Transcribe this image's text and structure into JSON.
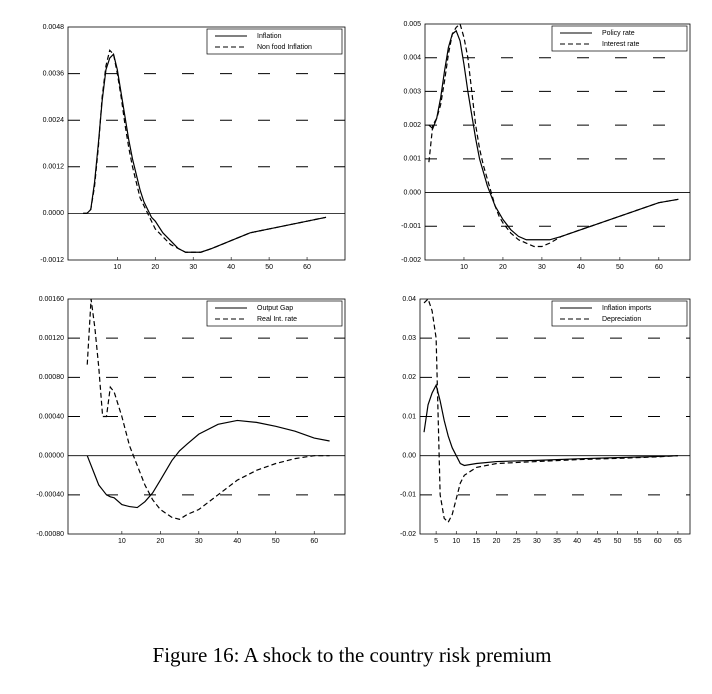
{
  "chart_data": [
    {
      "type": "line",
      "x": [
        1,
        2,
        3,
        4,
        5,
        6,
        7,
        8,
        9,
        10,
        11,
        12,
        13,
        14,
        15,
        16,
        17,
        18,
        19,
        20,
        22,
        24,
        26,
        28,
        30,
        32,
        35,
        40,
        45,
        50,
        55,
        60,
        65
      ],
      "series": [
        {
          "name": "Inflation",
          "color": "#000000",
          "style": "solid",
          "values": [
            0,
            0,
            0.0001,
            0.0008,
            0.0018,
            0.0029,
            0.0037,
            0.004,
            0.0041,
            0.0037,
            0.0031,
            0.0025,
            0.0019,
            0.0014,
            0.001,
            0.0006,
            0.0003,
            0.0001,
            -0.0001,
            -0.0002,
            -0.0005,
            -0.0007,
            -0.0009,
            -0.001,
            -0.001,
            -0.001,
            -0.0009,
            -0.0007,
            -0.0005,
            -0.0004,
            -0.0003,
            -0.0002,
            -0.0001
          ]
        },
        {
          "name": "Non food Inflation",
          "color": "#000000",
          "style": "dashed",
          "values": [
            0,
            0,
            0.0001,
            0.0007,
            0.0017,
            0.003,
            0.0038,
            0.0042,
            0.0041,
            0.0036,
            0.003,
            0.0023,
            0.0017,
            0.0012,
            0.0008,
            0.0004,
            0.0002,
            0,
            -0.0002,
            -0.0004,
            -0.0006,
            -0.0008,
            -0.0009,
            -0.001,
            -0.001,
            -0.001,
            -0.0009,
            -0.0007,
            -0.0005,
            -0.0004,
            -0.0003,
            -0.0002,
            -0.0001
          ]
        }
      ],
      "xlim": [
        -3,
        70
      ],
      "xticks": [
        10,
        20,
        30,
        40,
        50,
        60
      ],
      "ylim": [
        -0.0012,
        0.0048
      ],
      "yticks": [
        {
          "value": -0.0012,
          "label": "-0.0012"
        },
        {
          "value": 0,
          "label": "0.0000"
        },
        {
          "value": 0.0012,
          "label": "0.0012"
        },
        {
          "value": 0.0024,
          "label": "0.0024"
        },
        {
          "value": 0.0036,
          "label": "0.0036"
        },
        {
          "value": 0.0048,
          "label": "0.0048"
        }
      ],
      "grid": true,
      "legend": "top-right"
    },
    {
      "type": "line",
      "x": [
        1,
        2,
        3,
        4,
        5,
        6,
        7,
        8,
        9,
        10,
        11,
        12,
        13,
        14,
        15,
        16,
        17,
        18,
        19,
        20,
        22,
        24,
        26,
        28,
        30,
        32,
        35,
        40,
        45,
        50,
        55,
        60,
        65
      ],
      "series": [
        {
          "name": "Policy rate",
          "color": "#000000",
          "style": "solid",
          "values": [
            0.002,
            0.0019,
            0.0022,
            0.0028,
            0.0036,
            0.0043,
            0.0047,
            0.0048,
            0.0045,
            0.0038,
            0.003,
            0.0023,
            0.0016,
            0.001,
            0.0006,
            0.0002,
            -0.0001,
            -0.0004,
            -0.0006,
            -0.0008,
            -0.0011,
            -0.0013,
            -0.0014,
            -0.0014,
            -0.0014,
            -0.0014,
            -0.0013,
            -0.0011,
            -0.0009,
            -0.0007,
            -0.0005,
            -0.0003,
            -0.0002
          ]
        },
        {
          "name": "Interest rate",
          "color": "#000000",
          "style": "dashed",
          "values": [
            0.0009,
            0.002,
            0.0022,
            0.0026,
            0.0033,
            0.0041,
            0.0047,
            0.0049,
            0.005,
            0.0046,
            0.004,
            0.003,
            0.002,
            0.0013,
            0.0008,
            0.0004,
            0,
            -0.0004,
            -0.0007,
            -0.0009,
            -0.0012,
            -0.0014,
            -0.0015,
            -0.0016,
            -0.0016,
            -0.0015,
            -0.0013,
            -0.0011,
            -0.0009,
            -0.0007,
            -0.0005,
            -0.0003,
            -0.0002
          ]
        }
      ],
      "xlim": [
        0,
        68
      ],
      "xticks": [
        10,
        20,
        30,
        40,
        50,
        60
      ],
      "ylim": [
        -0.002,
        0.005
      ],
      "yticks": [
        {
          "value": -0.002,
          "label": "-0.002"
        },
        {
          "value": -0.001,
          "label": "-0.001"
        },
        {
          "value": 0,
          "label": "0.000"
        },
        {
          "value": 0.001,
          "label": "0.001"
        },
        {
          "value": 0.002,
          "label": "0.002"
        },
        {
          "value": 0.003,
          "label": "0.003"
        },
        {
          "value": 0.004,
          "label": "0.004"
        },
        {
          "value": 0.005,
          "label": "0.005"
        }
      ],
      "grid": true,
      "legend": "top-right"
    },
    {
      "type": "line",
      "x": [
        1,
        2,
        3,
        4,
        5,
        6,
        7,
        8,
        10,
        12,
        14,
        16,
        18,
        20,
        23,
        25,
        27,
        30,
        35,
        40,
        45,
        50,
        55,
        60,
        64
      ],
      "series": [
        {
          "name": "Output Gap",
          "color": "#000000",
          "style": "solid",
          "values": [
            0,
            -0.0001,
            -0.0002,
            -0.0003,
            -0.00035,
            -0.0004,
            -0.00042,
            -0.00043,
            -0.0005,
            -0.00052,
            -0.00053,
            -0.00047,
            -0.00038,
            -0.00025,
            -5e-05,
            5e-05,
            0.00012,
            0.00022,
            0.00032,
            0.00036,
            0.00034,
            0.0003,
            0.00025,
            0.00018,
            0.00015
          ]
        },
        {
          "name": "Real Int. rate",
          "color": "#000000",
          "style": "dashed",
          "values": [
            0.00093,
            0.0016,
            0.0013,
            0.0009,
            0.0004,
            0.0004,
            0.0007,
            0.00065,
            0.0004,
            0.0001,
            -0.0001,
            -0.0003,
            -0.00045,
            -0.00055,
            -0.00063,
            -0.00065,
            -0.0006,
            -0.00055,
            -0.0004,
            -0.00025,
            -0.00015,
            -8e-05,
            -3e-05,
            0,
            0
          ]
        }
      ],
      "xlim": [
        -4,
        68
      ],
      "xticks": [
        10,
        20,
        30,
        40,
        50,
        60
      ],
      "ylim": [
        -0.0008,
        0.0016
      ],
      "yticks": [
        {
          "value": -0.0008,
          "label": "-0.00080"
        },
        {
          "value": -0.0004,
          "label": "-0.00040"
        },
        {
          "value": 0,
          "label": "0.00000"
        },
        {
          "value": 0.0004,
          "label": "0.00040"
        },
        {
          "value": 0.0008,
          "label": "0.00080"
        },
        {
          "value": 0.0012,
          "label": "0.00120"
        },
        {
          "value": 0.0016,
          "label": "0.00160"
        }
      ],
      "grid": true,
      "legend": "top-right"
    },
    {
      "type": "line",
      "x": [
        2,
        3,
        4,
        5,
        6,
        7,
        8,
        9,
        10,
        11,
        12,
        15,
        20,
        30,
        40,
        50,
        60,
        65
      ],
      "series": [
        {
          "name": "Inflation imports",
          "color": "#000000",
          "style": "solid",
          "values": [
            0.006,
            0.013,
            0.016,
            0.018,
            0.014,
            0.009,
            0.005,
            0.002,
            0,
            -0.002,
            -0.0025,
            -0.002,
            -0.0015,
            -0.0012,
            -0.0008,
            -0.0005,
            -0.0002,
            0
          ]
        },
        {
          "name": "Depreciation",
          "color": "#000000",
          "style": "dashed",
          "values": [
            0.039,
            0.04,
            0.037,
            0.03,
            -0.01,
            -0.016,
            -0.017,
            -0.015,
            -0.011,
            -0.007,
            -0.005,
            -0.003,
            -0.002,
            -0.0015,
            -0.001,
            -0.0007,
            -0.0003,
            0
          ]
        }
      ],
      "xlim": [
        1,
        68
      ],
      "xticks": [
        5,
        10,
        15,
        20,
        25,
        30,
        35,
        40,
        45,
        50,
        55,
        60,
        65
      ],
      "ylim": [
        -0.02,
        0.04
      ],
      "yticks": [
        {
          "value": -0.02,
          "label": "-0.02"
        },
        {
          "value": -0.01,
          "label": "-0.01"
        },
        {
          "value": 0,
          "label": "0.00"
        },
        {
          "value": 0.01,
          "label": "0.01"
        },
        {
          "value": 0.02,
          "label": "0.02"
        },
        {
          "value": 0.03,
          "label": "0.03"
        },
        {
          "value": 0.04,
          "label": "0.04"
        }
      ],
      "grid": true,
      "legend": "top-right"
    }
  ],
  "caption": "Figure 16: A shock to the country risk premium"
}
